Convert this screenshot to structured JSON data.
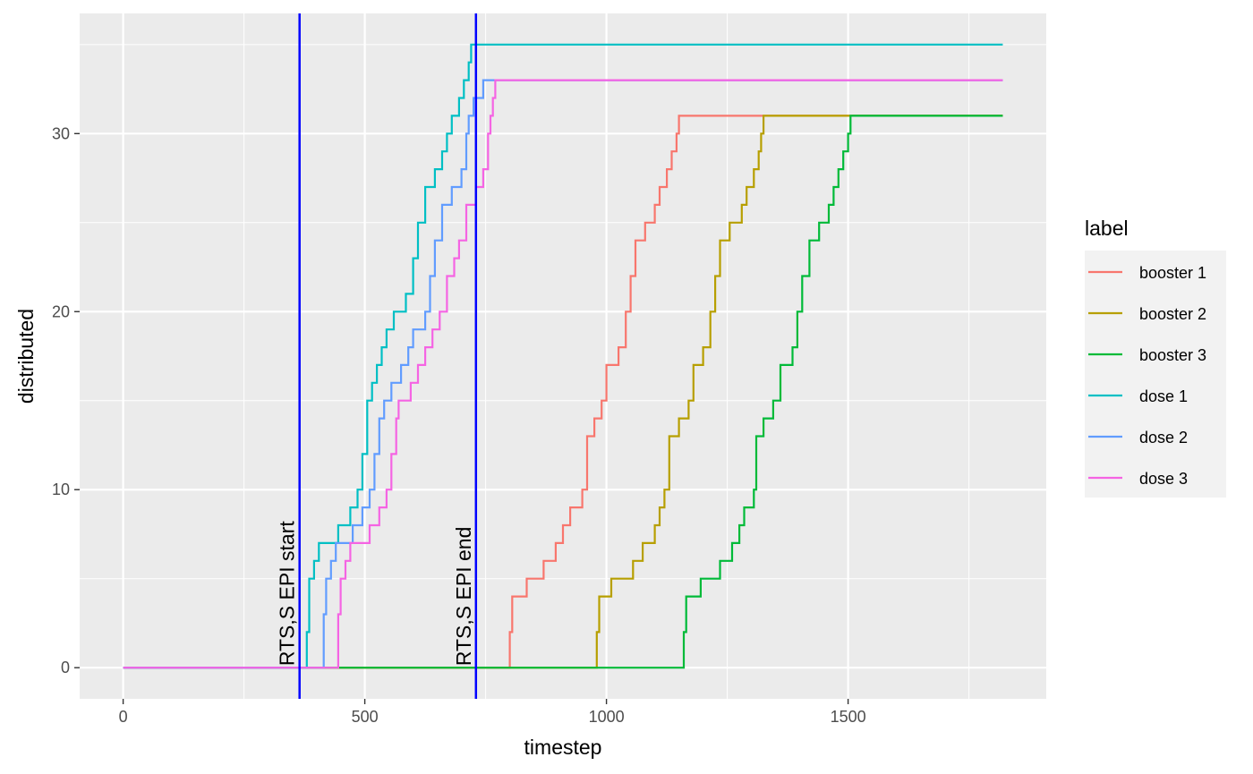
{
  "chart_data": {
    "type": "line",
    "xlabel": "timestep",
    "ylabel": "distributed",
    "xlim": [
      -90,
      1910
    ],
    "ylim": [
      -1.75,
      36.75
    ],
    "x_ticks": [
      0,
      500,
      1000,
      1500
    ],
    "y_ticks": [
      0,
      10,
      20,
      30
    ],
    "grid": true,
    "legend": {
      "title": "label",
      "position": "right"
    },
    "series": [
      {
        "name": "booster 1",
        "color": "#F8766D",
        "points": [
          [
            0,
            0
          ],
          [
            795,
            0
          ],
          [
            800,
            2
          ],
          [
            805,
            4
          ],
          [
            835,
            5
          ],
          [
            870,
            6
          ],
          [
            895,
            7
          ],
          [
            910,
            8
          ],
          [
            925,
            9
          ],
          [
            950,
            10
          ],
          [
            960,
            13
          ],
          [
            975,
            14
          ],
          [
            990,
            15
          ],
          [
            1000,
            17
          ],
          [
            1025,
            18
          ],
          [
            1040,
            20
          ],
          [
            1050,
            22
          ],
          [
            1060,
            24
          ],
          [
            1080,
            25
          ],
          [
            1100,
            26
          ],
          [
            1110,
            27
          ],
          [
            1125,
            28
          ],
          [
            1135,
            29
          ],
          [
            1145,
            30
          ],
          [
            1150,
            31
          ],
          [
            1820,
            31
          ]
        ]
      },
      {
        "name": "booster 2",
        "color": "#B79F00",
        "points": [
          [
            0,
            0
          ],
          [
            975,
            0
          ],
          [
            980,
            2
          ],
          [
            985,
            4
          ],
          [
            1010,
            5
          ],
          [
            1055,
            6
          ],
          [
            1075,
            7
          ],
          [
            1100,
            8
          ],
          [
            1110,
            9
          ],
          [
            1120,
            10
          ],
          [
            1130,
            13
          ],
          [
            1150,
            14
          ],
          [
            1170,
            15
          ],
          [
            1180,
            17
          ],
          [
            1200,
            18
          ],
          [
            1215,
            20
          ],
          [
            1225,
            22
          ],
          [
            1235,
            24
          ],
          [
            1255,
            25
          ],
          [
            1280,
            26
          ],
          [
            1290,
            27
          ],
          [
            1305,
            28
          ],
          [
            1315,
            29
          ],
          [
            1320,
            30
          ],
          [
            1325,
            31
          ],
          [
            1820,
            31
          ]
        ]
      },
      {
        "name": "booster 3",
        "color": "#00BA38",
        "points": [
          [
            0,
            0
          ],
          [
            1155,
            0
          ],
          [
            1160,
            2
          ],
          [
            1165,
            4
          ],
          [
            1195,
            5
          ],
          [
            1235,
            6
          ],
          [
            1260,
            7
          ],
          [
            1275,
            8
          ],
          [
            1285,
            9
          ],
          [
            1305,
            10
          ],
          [
            1310,
            13
          ],
          [
            1325,
            14
          ],
          [
            1345,
            15
          ],
          [
            1360,
            17
          ],
          [
            1385,
            18
          ],
          [
            1395,
            20
          ],
          [
            1405,
            22
          ],
          [
            1420,
            24
          ],
          [
            1440,
            25
          ],
          [
            1460,
            26
          ],
          [
            1470,
            27
          ],
          [
            1480,
            28
          ],
          [
            1490,
            29
          ],
          [
            1500,
            30
          ],
          [
            1505,
            31
          ],
          [
            1820,
            31
          ]
        ]
      },
      {
        "name": "dose 1",
        "color": "#00BFC4",
        "points": [
          [
            0,
            0
          ],
          [
            375,
            0
          ],
          [
            380,
            2
          ],
          [
            385,
            5
          ],
          [
            395,
            6
          ],
          [
            405,
            7
          ],
          [
            445,
            8
          ],
          [
            470,
            9
          ],
          [
            485,
            10
          ],
          [
            495,
            12
          ],
          [
            505,
            15
          ],
          [
            515,
            16
          ],
          [
            525,
            17
          ],
          [
            535,
            18
          ],
          [
            545,
            19
          ],
          [
            560,
            20
          ],
          [
            585,
            21
          ],
          [
            600,
            23
          ],
          [
            610,
            25
          ],
          [
            625,
            27
          ],
          [
            645,
            28
          ],
          [
            660,
            29
          ],
          [
            670,
            30
          ],
          [
            680,
            31
          ],
          [
            695,
            32
          ],
          [
            705,
            33
          ],
          [
            715,
            34
          ],
          [
            720,
            35
          ],
          [
            1820,
            35
          ]
        ]
      },
      {
        "name": "dose 2",
        "color": "#619CFF",
        "points": [
          [
            0,
            0
          ],
          [
            410,
            0
          ],
          [
            415,
            3
          ],
          [
            420,
            5
          ],
          [
            430,
            6
          ],
          [
            440,
            7
          ],
          [
            475,
            8
          ],
          [
            495,
            9
          ],
          [
            510,
            10
          ],
          [
            520,
            12
          ],
          [
            530,
            14
          ],
          [
            540,
            15
          ],
          [
            555,
            16
          ],
          [
            575,
            17
          ],
          [
            590,
            18
          ],
          [
            600,
            19
          ],
          [
            625,
            20
          ],
          [
            635,
            22
          ],
          [
            645,
            24
          ],
          [
            660,
            26
          ],
          [
            680,
            27
          ],
          [
            700,
            28
          ],
          [
            710,
            30
          ],
          [
            715,
            31
          ],
          [
            725,
            32
          ],
          [
            745,
            33
          ],
          [
            1820,
            33
          ]
        ]
      },
      {
        "name": "dose 3",
        "color": "#F564E3",
        "points": [
          [
            0,
            0
          ],
          [
            440,
            0
          ],
          [
            445,
            3
          ],
          [
            450,
            5
          ],
          [
            460,
            6
          ],
          [
            470,
            7
          ],
          [
            510,
            8
          ],
          [
            530,
            9
          ],
          [
            545,
            10
          ],
          [
            555,
            12
          ],
          [
            565,
            14
          ],
          [
            570,
            15
          ],
          [
            595,
            16
          ],
          [
            610,
            17
          ],
          [
            625,
            18
          ],
          [
            640,
            19
          ],
          [
            655,
            20
          ],
          [
            670,
            22
          ],
          [
            685,
            23
          ],
          [
            695,
            24
          ],
          [
            710,
            26
          ],
          [
            730,
            27
          ],
          [
            745,
            28
          ],
          [
            755,
            30
          ],
          [
            760,
            31
          ],
          [
            765,
            32
          ],
          [
            770,
            33
          ],
          [
            1820,
            33
          ]
        ]
      }
    ],
    "annotations": [
      {
        "x": 365,
        "text": "RTS,S EPI start",
        "color": "#0000FF"
      },
      {
        "x": 730,
        "text": "RTS,S EPI end",
        "color": "#0000FF"
      }
    ]
  }
}
